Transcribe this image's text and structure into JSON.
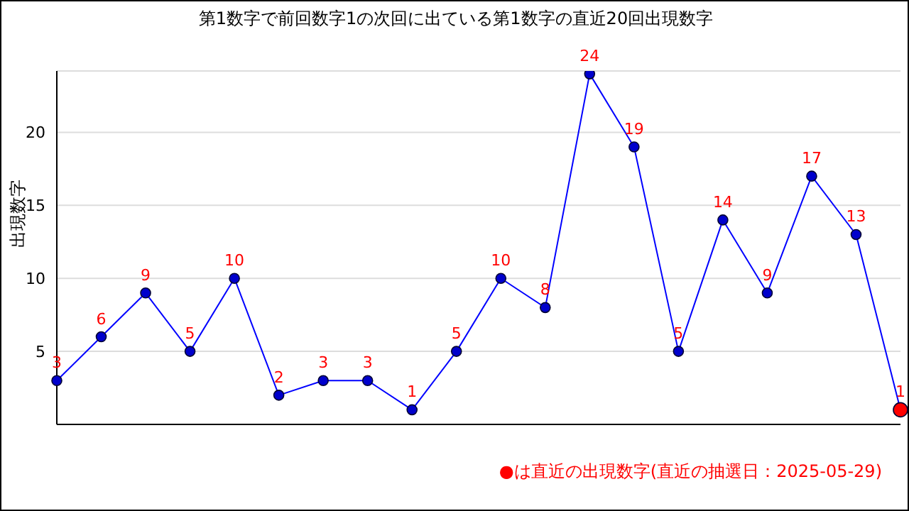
{
  "chart_data": {
    "type": "line",
    "title": "第1数字で前回数字1の次回に出ている第1数字の直近20回出現数字",
    "ylabel": "出現数字",
    "categories": [
      null,
      null,
      null,
      null,
      null,
      null,
      null,
      null,
      null,
      null,
      null,
      null,
      null,
      null,
      null,
      null,
      null,
      null,
      null,
      null
    ],
    "series": [
      {
        "color": "#0000ff",
        "colors": [
          "#0000cc",
          "#0000cc",
          "#0000cc",
          "#0000cc",
          "#0000cc",
          "#0000cc",
          "#0000cc",
          "#0000cc",
          "#0000cc",
          "#0000cc",
          "#0000cc",
          "#0000cc",
          "#0000cc",
          "#0000cc",
          "#0000cc",
          "#0000cc",
          "#0000cc",
          "#0000cc",
          "#0000cc",
          "#ff0000"
        ],
        "values": [
          3,
          6,
          9,
          5,
          10,
          2,
          3,
          3,
          1,
          5,
          10,
          8,
          24,
          19,
          5,
          14,
          9,
          17,
          13,
          1
        ]
      }
    ],
    "ylim": [
      0,
      24.2
    ],
    "yticks": [
      5,
      10,
      15,
      20
    ],
    "grid": "y",
    "marker": "circle",
    "line_style": "solid",
    "data_labels": true,
    "legend": false,
    "annotations": [
      "●は直近の出現数字(直近の抽選日：2025-05-29)"
    ]
  }
}
